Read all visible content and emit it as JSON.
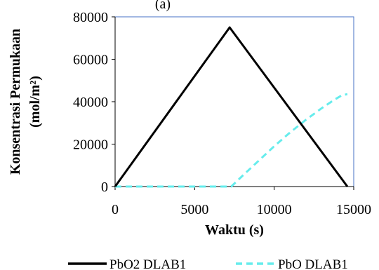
{
  "chart_data": {
    "type": "line",
    "title": "(a)",
    "xlabel": "Waktu (s)",
    "ylabel_line1": "Konsentrasi Permukaan",
    "ylabel_line2": "(mol/m²)",
    "xlim": [
      0,
      15000
    ],
    "ylim": [
      0,
      80000
    ],
    "x_ticks": [
      0,
      5000,
      10000,
      15000
    ],
    "y_ticks": [
      0,
      20000,
      40000,
      60000,
      80000
    ],
    "grid": false,
    "legend_position": "bottom",
    "series": [
      {
        "name": "PbO2 DLAB1",
        "color": "#000000",
        "style": "solid",
        "x": [
          0,
          7200,
          14600
        ],
        "y": [
          0,
          75000,
          0
        ]
      },
      {
        "name": "PbO DLAB1",
        "color": "#66ecec",
        "style": "dashed",
        "x": [
          0,
          7300,
          8000,
          9000,
          10000,
          11000,
          12000,
          13000,
          13800,
          14300,
          14600
        ],
        "y": [
          0,
          0,
          5000,
          12000,
          19000,
          25500,
          31500,
          37000,
          41000,
          43200,
          43500
        ]
      }
    ]
  }
}
